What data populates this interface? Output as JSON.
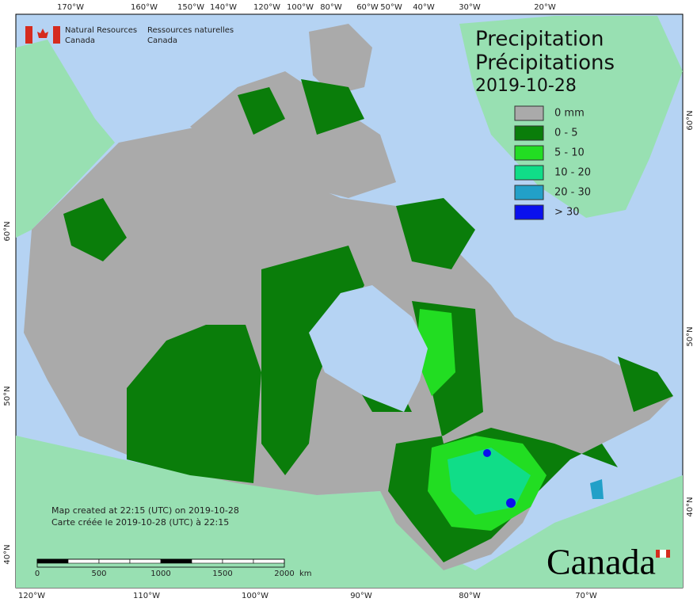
{
  "header": {
    "agency_en": [
      "Natural Resources",
      "Canada"
    ],
    "agency_fr": [
      "Ressources naturelles",
      "Canada"
    ]
  },
  "title": {
    "en": "Precipitation",
    "fr": "Précipitations",
    "date": "2019-10-28"
  },
  "legend": [
    {
      "label": "0 mm",
      "color": "#aaaaaa"
    },
    {
      "label": "0 - 5",
      "color": "#0a7d0a"
    },
    {
      "label": "5 - 10",
      "color": "#22dd22"
    },
    {
      "label": "10 - 20",
      "color": "#10dd88"
    },
    {
      "label": "20 - 30",
      "color": "#22a0c8"
    },
    {
      "label": "> 30",
      "color": "#0a10ee"
    }
  ],
  "graticule": {
    "top": [
      "170°W",
      "160°W",
      "150°W",
      "140°W",
      "120°W",
      "100°W",
      "80°W",
      "60°W",
      "50°W",
      "40°W",
      "30°W",
      "20°W"
    ],
    "bottom": [
      "120°W",
      "110°W",
      "100°W",
      "90°W",
      "80°W",
      "70°W"
    ],
    "left": [
      "60°N",
      "50°N",
      "40°N"
    ],
    "right": [
      "60°N",
      "50°N",
      "40°N"
    ]
  },
  "notes": [
    "Map created at 22:15 (UTC) on 2019-10-28",
    "Carte créée le 2019-10-28 (UTC) à 22:15"
  ],
  "scale": {
    "ticks": [
      "0",
      "500",
      "1000",
      "1500",
      "2000"
    ],
    "unit": "km"
  },
  "wordmark": "Canada"
}
